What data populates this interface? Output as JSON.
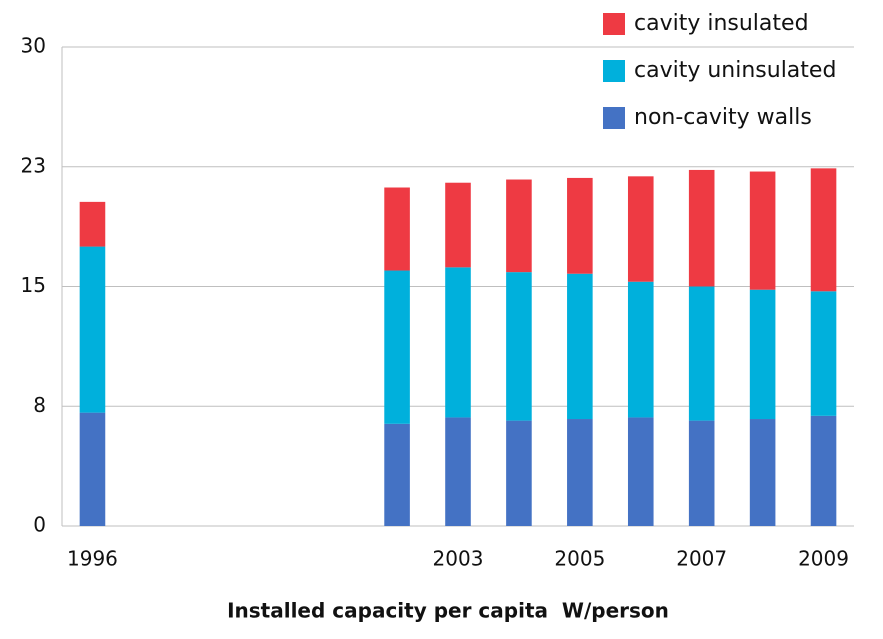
{
  "chart_data": {
    "type": "stacked_bar",
    "x_label": "Installed capacity per capita  W/person",
    "categories": [
      "1996",
      null,
      null,
      null,
      null,
      null,
      "2003",
      null,
      "2005",
      null,
      "2007",
      null,
      "2009"
    ],
    "series": [
      {
        "name": "non-cavity walls",
        "color": "#4472c4",
        "values": [
          7.1,
          null,
          null,
          null,
          null,
          6.4,
          6.8,
          6.6,
          6.7,
          6.8,
          6.6,
          6.7,
          6.9
        ]
      },
      {
        "name": "cavity uninsulated",
        "color": "#00b0dc",
        "values": [
          10.4,
          null,
          null,
          null,
          null,
          9.6,
          9.4,
          9.3,
          9.1,
          8.5,
          8.4,
          8.1,
          7.8
        ]
      },
      {
        "name": "cavity insulated",
        "color": "#ee3a43",
        "values": [
          2.8,
          null,
          null,
          null,
          null,
          5.2,
          5.3,
          5.8,
          6.0,
          6.6,
          7.3,
          7.4,
          7.7
        ]
      }
    ],
    "ylim": [
      0,
      30
    ],
    "yticks": [
      0,
      {
        "value": 7.5,
        "label": "8"
      },
      15,
      {
        "value": 22.5,
        "label": "23"
      },
      30
    ],
    "grid": true,
    "legend": "top-right"
  }
}
